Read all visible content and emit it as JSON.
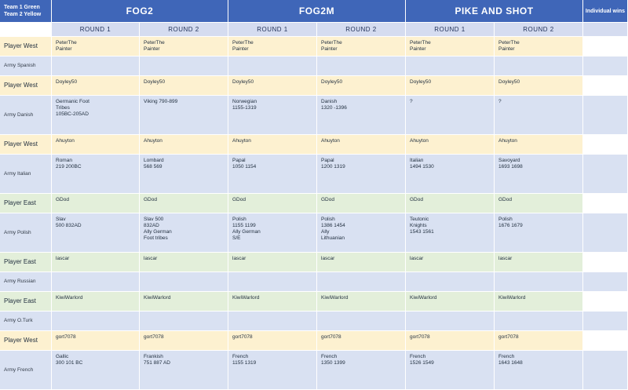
{
  "corner_label": "Team 1 Green\nTeam 2 Yellow",
  "games": [
    "FOG2",
    "FOG2M",
    "PIKE AND SHOT"
  ],
  "individual_wins_label": "Individual wins",
  "round_labels": [
    "ROUND 1",
    "ROUND 2",
    "ROUND 1",
    "ROUND 2",
    "ROUND 1",
    "ROUND 2"
  ],
  "colors": {
    "header": "#3f66b8",
    "subheader": "#d5dcf0",
    "yellow_team": "#fdf1d0",
    "green_team": "#e3efda",
    "army_row": "#d9e1f2"
  },
  "entries": [
    {
      "player_label": "Player West",
      "team_color": "yellow",
      "player_values": [
        "PeterThe\nPainter",
        "PeterThe\nPainter",
        "PeterThe\nPainter",
        "PeterThe\nPainter",
        "PeterThe\nPainter",
        "PeterThe\nPainter"
      ],
      "army_label": "Army Spanish",
      "army_values": [
        "",
        "",
        "",
        "",
        "",
        ""
      ],
      "army_rows": 1
    },
    {
      "player_label": "Player West",
      "team_color": "yellow",
      "player_values": [
        "Doyley50",
        "Doyley50",
        "Doyley50",
        "Doyley50",
        "Doyley50",
        "Doyley50"
      ],
      "army_label": "Army Danish",
      "army_values": [
        "Germanic Foot\nTribes\n105BC-205AD",
        "Viking 790-899",
        "Norwegian\n1155-1319",
        "Danish\n1320 -1396",
        "?",
        "?"
      ],
      "army_rows": 2
    },
    {
      "player_label": "Player West",
      "team_color": "yellow",
      "player_values": [
        "Ahuyton",
        "Ahuyton",
        "Ahuyton",
        "Ahuyton",
        "Ahuyton",
        "Ahuyton"
      ],
      "army_label": "Army Italian",
      "army_values": [
        "Roman\n219 200BC",
        "Lombard\n568 569",
        "Papal\n1050 1154",
        "Papal\n1200 1319",
        "Italian\n1494 1530",
        "Savoyard\n1693 1698"
      ],
      "army_rows": 2
    },
    {
      "player_label": "Player East",
      "team_color": "green",
      "player_values": [
        "GDod",
        "GDod",
        "GDod",
        "GDod",
        "GDod",
        "GDod"
      ],
      "army_label": "Army Polish",
      "army_values": [
        "Slav\n500 832AD",
        "Slav 500\n832AD\nAlly German\nFoot tribes",
        "Polish\n1155 1199\nAlly German\nS/E",
        "Polish\n1386 1454\nAlly\nLithuanian",
        "Teutonic\nKnights\n1543 1561",
        "Polish\n1676 1679"
      ],
      "army_rows": 2
    },
    {
      "player_label": "Player East",
      "team_color": "green",
      "player_values": [
        "lascar",
        "lascar",
        "lascar",
        "lascar",
        "lascar",
        "lascar"
      ],
      "army_label": "Army Russian",
      "army_values": [
        "",
        "",
        "",
        "",
        "",
        ""
      ],
      "army_rows": 1
    },
    {
      "player_label": "Player East",
      "team_color": "green",
      "player_values": [
        "KiwiWarlord",
        "KiwiWarlord",
        "KiwiWarlord",
        "KiwiWarlord",
        "KiwiWarlord",
        "KiwiWarlord"
      ],
      "army_label": "Army O.Turk",
      "army_values": [
        "",
        "",
        "",
        "",
        "",
        ""
      ],
      "army_rows": 1
    },
    {
      "player_label": "Player West",
      "team_color": "yellow",
      "player_values": [
        "gort7078",
        "gort7078",
        "gort7078",
        "gort7078",
        "gort7078",
        "gort7078"
      ],
      "army_label": "Army French",
      "army_values": [
        "Gallic\n300 101  BC",
        "Frankish\n751 887  AD",
        "French\n1155 1319",
        "French\n1350 1399",
        " French\n1526 1549",
        "French\n1643 1648"
      ],
      "army_rows": 2
    }
  ]
}
